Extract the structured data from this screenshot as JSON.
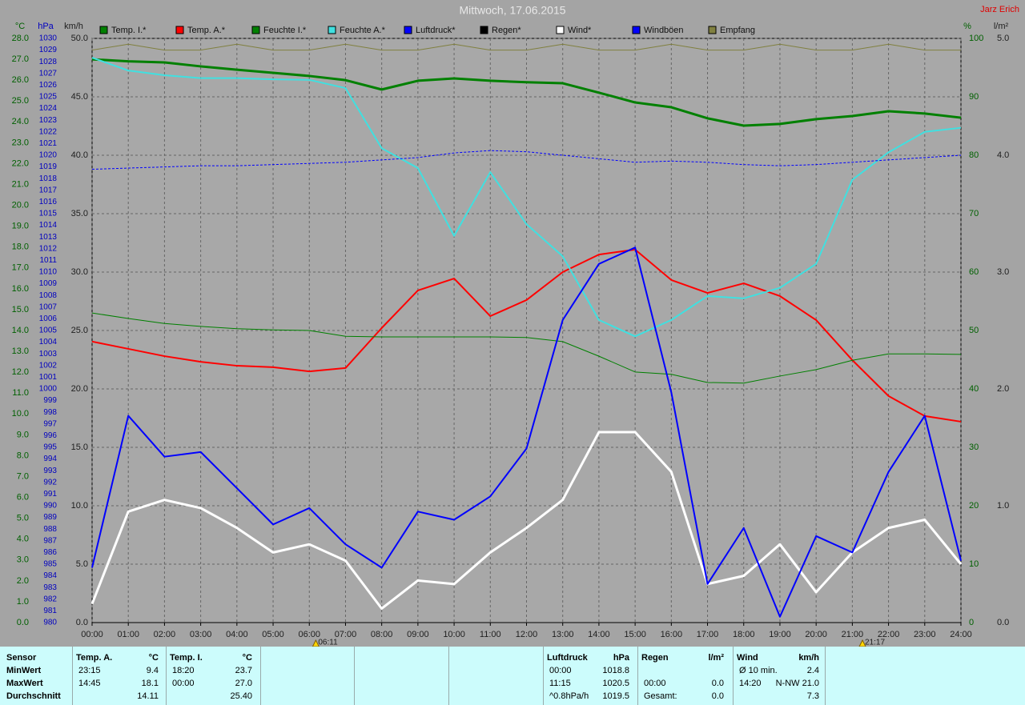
{
  "chart_data": {
    "type": "line",
    "title": "Mittwoch, 17.06.2015",
    "author": "Jarz Erich",
    "grid": true,
    "ylabel": "°C",
    "y2label": "hPa",
    "y3label": "km/h",
    "y4label": "%",
    "y5label": "l/m²",
    "x": [
      0,
      1,
      2,
      3,
      4,
      5,
      6,
      7,
      8,
      9,
      10,
      11,
      12,
      13,
      14,
      15,
      16,
      17,
      18,
      19,
      20,
      21,
      22,
      23,
      24
    ],
    "xlim": [
      0,
      24
    ],
    "xticks": [
      {
        "value": 0,
        "label": "00:00"
      },
      {
        "value": 1,
        "label": "01:00"
      },
      {
        "value": 2,
        "label": "02:00"
      },
      {
        "value": 3,
        "label": "03:00"
      },
      {
        "value": 4,
        "label": "04:00"
      },
      {
        "value": 5,
        "label": "05:00"
      },
      {
        "value": 6,
        "label": "06:00"
      },
      {
        "value": 7,
        "label": "07:00"
      },
      {
        "value": 8,
        "label": "08:00"
      },
      {
        "value": 9,
        "label": "09:00"
      },
      {
        "value": 10,
        "label": "10:00"
      },
      {
        "value": 11,
        "label": "11:00"
      },
      {
        "value": 12,
        "label": "12:00"
      },
      {
        "value": 13,
        "label": "13:00"
      },
      {
        "value": 14,
        "label": "14:00"
      },
      {
        "value": 15,
        "label": "15:00"
      },
      {
        "value": 16,
        "label": "16:00"
      },
      {
        "value": 17,
        "label": "17:00"
      },
      {
        "value": 18,
        "label": "18:00"
      },
      {
        "value": 19,
        "label": "19:00"
      },
      {
        "value": 20,
        "label": "20:00"
      },
      {
        "value": 21,
        "label": "21:00"
      },
      {
        "value": 22,
        "label": "22:00"
      },
      {
        "value": 23,
        "label": "23:00"
      },
      {
        "value": 24,
        "label": "24:00"
      }
    ],
    "markers": [
      {
        "value": 6.18,
        "label": "06:11"
      },
      {
        "value": 21.28,
        "label": "21:17"
      }
    ],
    "ylim": [
      0,
      28
    ],
    "yticks": [
      {
        "value": 0,
        "label": "0.0"
      },
      {
        "value": 1,
        "label": "1.0"
      },
      {
        "value": 2,
        "label": "2.0"
      },
      {
        "value": 3,
        "label": "3.0"
      },
      {
        "value": 4,
        "label": "4.0"
      },
      {
        "value": 5,
        "label": "5.0"
      },
      {
        "value": 6,
        "label": "6.0"
      },
      {
        "value": 7,
        "label": "7.0"
      },
      {
        "value": 8,
        "label": "8.0"
      },
      {
        "value": 9,
        "label": "9.0"
      },
      {
        "value": 10,
        "label": "10.0"
      },
      {
        "value": 11,
        "label": "11.0"
      },
      {
        "value": 12,
        "label": "12.0"
      },
      {
        "value": 13,
        "label": "13.0"
      },
      {
        "value": 14,
        "label": "14.0"
      },
      {
        "value": 15,
        "label": "15.0"
      },
      {
        "value": 16,
        "label": "16.0"
      },
      {
        "value": 17,
        "label": "17.0"
      },
      {
        "value": 18,
        "label": "18.0"
      },
      {
        "value": 19,
        "label": "19.0"
      },
      {
        "value": 20,
        "label": "20.0"
      },
      {
        "value": 21,
        "label": "21.0"
      },
      {
        "value": 22,
        "label": "22.0"
      },
      {
        "value": 23,
        "label": "23.0"
      },
      {
        "value": 24,
        "label": "24.0"
      },
      {
        "value": 25,
        "label": "25.0"
      },
      {
        "value": 26,
        "label": "26.0"
      },
      {
        "value": 27,
        "label": "27.0"
      },
      {
        "value": 28,
        "label": "28.0"
      }
    ],
    "y2lim": [
      980,
      1030
    ],
    "y2ticks": [
      980,
      981,
      982,
      983,
      984,
      985,
      986,
      987,
      988,
      989,
      990,
      991,
      992,
      993,
      994,
      995,
      996,
      997,
      998,
      999,
      1000,
      1001,
      1002,
      1003,
      1004,
      1005,
      1006,
      1007,
      1008,
      1009,
      1010,
      1011,
      1012,
      1013,
      1014,
      1015,
      1016,
      1017,
      1018,
      1019,
      1020,
      1021,
      1022,
      1023,
      1024,
      1025,
      1026,
      1027,
      1028,
      1029,
      1030
    ],
    "y3lim": [
      0,
      50
    ],
    "y3ticks": [
      {
        "value": 0,
        "label": "0.0"
      },
      {
        "value": 5,
        "label": "5.0"
      },
      {
        "value": 10,
        "label": "10.0"
      },
      {
        "value": 15,
        "label": "15.0"
      },
      {
        "value": 20,
        "label": "20.0"
      },
      {
        "value": 25,
        "label": "25.0"
      },
      {
        "value": 30,
        "label": "30.0"
      },
      {
        "value": 35,
        "label": "35.0"
      },
      {
        "value": 40,
        "label": "40.0"
      },
      {
        "value": 45,
        "label": "45.0"
      },
      {
        "value": 50,
        "label": "50.0"
      }
    ],
    "y4lim": [
      0,
      100
    ],
    "y4ticks": [
      0,
      10,
      20,
      30,
      40,
      50,
      60,
      70,
      80,
      90,
      100
    ],
    "y5lim": [
      0,
      5
    ],
    "y5ticks": [
      {
        "value": 0,
        "label": "0.0"
      },
      {
        "value": 1,
        "label": "1.0"
      },
      {
        "value": 2,
        "label": "2.0"
      },
      {
        "value": 3,
        "label": "3.0"
      },
      {
        "value": 4,
        "label": "4.0"
      },
      {
        "value": 5,
        "label": "5.0"
      }
    ],
    "series": [
      {
        "name": "Temp. I.*",
        "color": "#008000",
        "axis": "y",
        "width": 3,
        "values": [
          27.0,
          26.9,
          26.85,
          26.66,
          26.5,
          26.35,
          26.2,
          26.0,
          25.55,
          25.97,
          26.08,
          25.97,
          25.9,
          25.85,
          25.4,
          24.93,
          24.7,
          24.17,
          23.82,
          23.9,
          24.13,
          24.28,
          24.51,
          24.4,
          24.2
        ]
      },
      {
        "name": "Temp. A.*",
        "color": "#ff0000",
        "axis": "y",
        "width": 2,
        "values": [
          13.47,
          13.12,
          12.77,
          12.5,
          12.31,
          12.24,
          12.04,
          12.2,
          14.12,
          15.92,
          16.49,
          14.69,
          15.46,
          16.8,
          17.64,
          17.88,
          16.42,
          15.8,
          16.26,
          15.65,
          14.5,
          12.58,
          10.86,
          9.9,
          9.63
        ]
      },
      {
        "name": "Feuchte I.*",
        "color": "#008000",
        "axis": "y4",
        "width": 1,
        "values": [
          53.0,
          52.05,
          51.2,
          50.7,
          50.3,
          50.1,
          50.0,
          49.0,
          48.9,
          48.9,
          48.9,
          48.9,
          48.8,
          48.1,
          45.6,
          42.9,
          42.5,
          41.1,
          41.0,
          42.2,
          43.3,
          44.9,
          46.0,
          46.0,
          45.9
        ]
      },
      {
        "name": "Feuchte A.*",
        "color": "#40e0e0",
        "axis": "y4",
        "width": 2,
        "values": [
          96.7,
          94.5,
          93.7,
          93.2,
          93.2,
          93.0,
          92.9,
          91.5,
          81.2,
          77.8,
          66.2,
          77.1,
          68.2,
          62.7,
          51.8,
          49.0,
          51.8,
          55.9,
          55.5,
          57.3,
          61.4,
          75.8,
          80.5,
          84.0,
          84.7
        ]
      },
      {
        "name": "Luftdruck*",
        "color": "#0000ff",
        "axis": "y2",
        "width": 1,
        "dash": "3,2",
        "values": [
          1018.8,
          1018.9,
          1019.0,
          1019.1,
          1019.1,
          1019.2,
          1019.3,
          1019.4,
          1019.6,
          1019.8,
          1020.2,
          1020.4,
          1020.3,
          1020.0,
          1019.7,
          1019.4,
          1019.5,
          1019.4,
          1019.2,
          1019.1,
          1019.2,
          1019.4,
          1019.6,
          1019.8,
          1020.0
        ]
      },
      {
        "name": "Regen*",
        "color": "#000000",
        "axis": "y5",
        "width": 1,
        "values": [
          0,
          0,
          0,
          0,
          0,
          0,
          0,
          0,
          0,
          0,
          0,
          0,
          0,
          0,
          0,
          0,
          0,
          0,
          0,
          0,
          0,
          0,
          0,
          0,
          0
        ]
      },
      {
        "name": "Wind*",
        "color": "#ffffff",
        "axis": "y3",
        "width": 3,
        "values": [
          1.6,
          9.5,
          10.5,
          9.8,
          8.1,
          6.0,
          6.7,
          5.3,
          1.2,
          3.6,
          3.3,
          6.0,
          8.1,
          10.5,
          16.3,
          16.3,
          12.9,
          3.3,
          4.0,
          6.7,
          2.6,
          6.0,
          8.1,
          8.8,
          5.0
        ]
      },
      {
        "name": "Windböen",
        "color": "#0000ff",
        "axis": "y3",
        "width": 2,
        "values": [
          4.7,
          17.7,
          14.2,
          14.6,
          11.5,
          8.4,
          9.8,
          6.7,
          4.7,
          9.5,
          8.8,
          10.8,
          14.9,
          25.9,
          30.7,
          32.1,
          19.7,
          3.3,
          8.1,
          0.5,
          7.4,
          6.0,
          12.9,
          17.7,
          5.3
        ]
      },
      {
        "name": "Empfang",
        "color": "#808040",
        "axis": "y4",
        "width": 1,
        "values": [
          98,
          99,
          98,
          98,
          99,
          98,
          98,
          99,
          98,
          98,
          99,
          98,
          98,
          99,
          98,
          98,
          99,
          98,
          98,
          99,
          98,
          98,
          99,
          98,
          98
        ]
      }
    ]
  },
  "stats": {
    "row_labels": [
      "Sensor",
      "MinWert",
      "MaxWert",
      "Durchschnitt"
    ],
    "blocks": [
      {
        "header": [
          "Temp. A.",
          "°C"
        ],
        "rows": [
          [
            "23:15",
            "9.4"
          ],
          [
            "14:45",
            "18.1"
          ],
          [
            null,
            "14.11"
          ]
        ]
      },
      {
        "header": [
          "Temp. I.",
          "°C"
        ],
        "rows": [
          [
            "18:20",
            "23.7"
          ],
          [
            "00:00",
            "27.0"
          ],
          [
            null,
            "25.40"
          ]
        ]
      },
      {
        "header": [
          "Luftdruck",
          "hPa"
        ],
        "rows": [
          [
            "00:00",
            "1018.8"
          ],
          [
            "11:15",
            "1020.5"
          ],
          [
            "^0.8hPa/h",
            "1019.5"
          ]
        ]
      },
      {
        "header": [
          "Regen",
          "l/m²"
        ],
        "rows": [
          [
            null,
            null
          ],
          [
            "00:00",
            "0.0"
          ],
          [
            "Gesamt:",
            "0.0"
          ]
        ]
      },
      {
        "header": [
          "Wind",
          "km/h"
        ],
        "rows": [
          [
            "Ø 10 min.",
            "2.4"
          ],
          [
            "14:20",
            "N-NW 21.0"
          ],
          [
            null,
            "7.3"
          ]
        ]
      }
    ]
  }
}
